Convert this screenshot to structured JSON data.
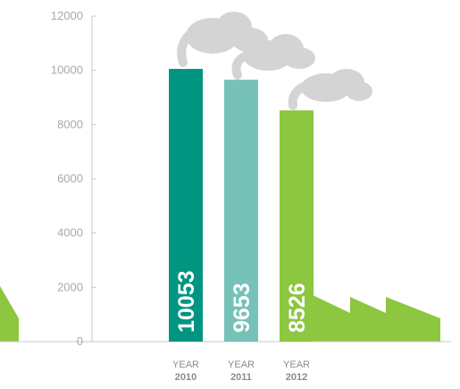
{
  "chart_data": {
    "type": "bar",
    "categories": [
      "2010",
      "2011",
      "2012"
    ],
    "values": [
      10053,
      9653,
      8526
    ],
    "value_labels": [
      "10053",
      "9653",
      "8526"
    ],
    "category_prefix": "YEAR",
    "ylim": [
      0,
      12000
    ],
    "yticks": [
      "0",
      "2000",
      "4000",
      "6000",
      "8000",
      "10000",
      "12000"
    ],
    "grid": false,
    "bar_colors": [
      "#009581",
      "#76c1b8",
      "#8dc63f"
    ],
    "decoration_color": "#8dc63f",
    "smoke_color": "#d4d4d4",
    "axis_color": "#c9c9c9"
  }
}
